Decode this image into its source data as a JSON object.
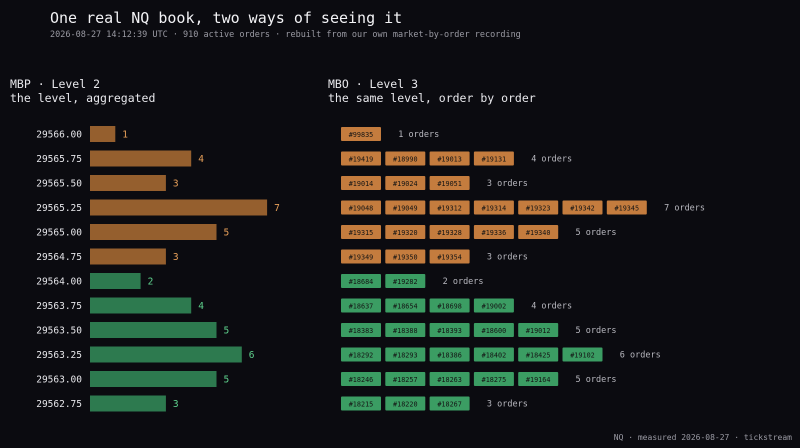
{
  "header": {
    "title": "One real NQ book, two ways of seeing it",
    "subtitle": "2026-08-27 14:12:39 UTC · 910 active orders · rebuilt from our own market-by-order recording"
  },
  "left_panel": {
    "title": "MBP · Level 2",
    "subtitle": "the level, aggregated"
  },
  "right_panel": {
    "title": "MBO · Level 3",
    "subtitle": "the same level, order by order"
  },
  "footer": "NQ · measured 2026-08-27 · tickstream",
  "colors": {
    "ask_fill": "#955f2e",
    "ask_text": "#e9a15a",
    "ask_chip": "#c47c3e",
    "bid_fill": "#2d7a4f",
    "bid_text": "#5fd38e",
    "bid_chip": "#3b9d63",
    "chip_text": "#141414",
    "price_text": "#e6e6ea",
    "orders_text": "#b8b8bf"
  },
  "chart_data": {
    "type": "bar",
    "orientation": "horizontal",
    "levels": [
      {
        "price": "29566.00",
        "side": "ask",
        "count": 1,
        "count_label": "1",
        "orders": [
          "#99835"
        ],
        "orders_label": "1 orders"
      },
      {
        "price": "29565.75",
        "side": "ask",
        "count": 4,
        "count_label": "4",
        "orders": [
          "#19419",
          "#18990",
          "#19013",
          "#19131"
        ],
        "orders_label": "4 orders"
      },
      {
        "price": "29565.50",
        "side": "ask",
        "count": 3,
        "count_label": "3",
        "orders": [
          "#19014",
          "#19024",
          "#19051"
        ],
        "orders_label": "3 orders"
      },
      {
        "price": "29565.25",
        "side": "ask",
        "count": 7,
        "count_label": "7",
        "orders": [
          "#19048",
          "#19049",
          "#19312",
          "#19314",
          "#19323",
          "#19342",
          "#19345"
        ],
        "orders_label": "7 orders"
      },
      {
        "price": "29565.00",
        "side": "ask",
        "count": 5,
        "count_label": "5",
        "orders": [
          "#19315",
          "#19320",
          "#19328",
          "#19336",
          "#19340"
        ],
        "orders_label": "5 orders"
      },
      {
        "price": "29564.75",
        "side": "ask",
        "count": 3,
        "count_label": "3",
        "orders": [
          "#19349",
          "#19350",
          "#19354"
        ],
        "orders_label": "3 orders"
      },
      {
        "price": "29564.00",
        "side": "bid",
        "count": 2,
        "count_label": "2",
        "orders": [
          "#18684",
          "#19282"
        ],
        "orders_label": "2 orders"
      },
      {
        "price": "29563.75",
        "side": "bid",
        "count": 4,
        "count_label": "4",
        "orders": [
          "#18637",
          "#18654",
          "#18698",
          "#19002"
        ],
        "orders_label": "4 orders"
      },
      {
        "price": "29563.50",
        "side": "bid",
        "count": 5,
        "count_label": "5",
        "orders": [
          "#18383",
          "#18388",
          "#18393",
          "#18600",
          "#19012"
        ],
        "orders_label": "5 orders"
      },
      {
        "price": "29563.25",
        "side": "bid",
        "count": 6,
        "count_label": "6",
        "orders": [
          "#18292",
          "#18293",
          "#18386",
          "#18402",
          "#18425",
          "#19102"
        ],
        "orders_label": "6 orders"
      },
      {
        "price": "29563.00",
        "side": "bid",
        "count": 5,
        "count_label": "5",
        "orders": [
          "#18246",
          "#18257",
          "#18263",
          "#18275",
          "#19164"
        ],
        "orders_label": "5 orders"
      },
      {
        "price": "29562.75",
        "side": "bid",
        "count": 3,
        "count_label": "3",
        "orders": [
          "#18215",
          "#18220",
          "#18267"
        ],
        "orders_label": "3 orders"
      }
    ]
  }
}
